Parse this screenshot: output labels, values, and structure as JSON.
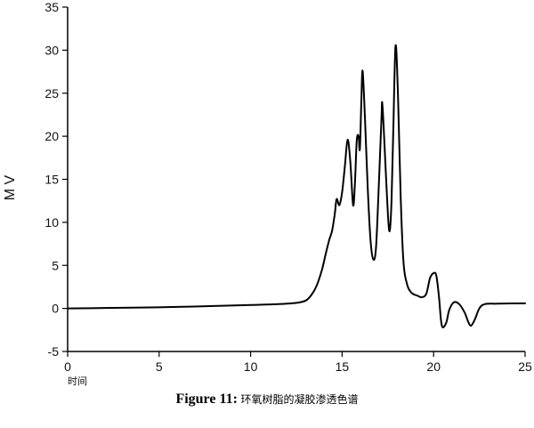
{
  "chart_data": {
    "type": "line",
    "title": "",
    "xlabel": "时间",
    "ylabel": "M V",
    "xlim": [
      0,
      25
    ],
    "ylim": [
      -5,
      35
    ],
    "x_ticks": [
      0,
      5,
      10,
      15,
      20,
      25
    ],
    "y_ticks": [
      -5,
      0,
      5,
      10,
      15,
      20,
      25,
      30,
      35
    ],
    "grid": false,
    "legend": "none",
    "series": [
      {
        "color": "#000000",
        "points": [
          [
            0,
            0.0
          ],
          [
            2,
            0.05
          ],
          [
            4,
            0.1
          ],
          [
            6,
            0.18
          ],
          [
            8,
            0.28
          ],
          [
            10,
            0.4
          ],
          [
            11.5,
            0.5
          ],
          [
            12.5,
            0.65
          ],
          [
            13.0,
            0.9
          ],
          [
            13.3,
            1.5
          ],
          [
            13.6,
            2.6
          ],
          [
            13.9,
            4.5
          ],
          [
            14.1,
            6.3
          ],
          [
            14.3,
            8.0
          ],
          [
            14.45,
            9.0
          ],
          [
            14.6,
            11.0
          ],
          [
            14.7,
            12.7
          ],
          [
            14.85,
            12.0
          ],
          [
            15.0,
            13.5
          ],
          [
            15.15,
            16.5
          ],
          [
            15.3,
            19.6
          ],
          [
            15.45,
            17.0
          ],
          [
            15.6,
            12.0
          ],
          [
            15.7,
            14.5
          ],
          [
            15.8,
            19.5
          ],
          [
            15.9,
            20.0
          ],
          [
            15.97,
            18.5
          ],
          [
            16.05,
            24.0
          ],
          [
            16.12,
            27.6
          ],
          [
            16.25,
            22.0
          ],
          [
            16.4,
            14.0
          ],
          [
            16.55,
            8.0
          ],
          [
            16.7,
            5.7
          ],
          [
            16.85,
            7.0
          ],
          [
            17.0,
            14.0
          ],
          [
            17.15,
            22.0
          ],
          [
            17.2,
            23.7
          ],
          [
            17.35,
            17.5
          ],
          [
            17.5,
            11.0
          ],
          [
            17.6,
            9.0
          ],
          [
            17.7,
            12.5
          ],
          [
            17.8,
            21.0
          ],
          [
            17.92,
            30.5
          ],
          [
            18.05,
            25.0
          ],
          [
            18.2,
            13.0
          ],
          [
            18.35,
            5.5
          ],
          [
            18.55,
            2.8
          ],
          [
            18.8,
            1.8
          ],
          [
            19.1,
            1.5
          ],
          [
            19.35,
            1.3
          ],
          [
            19.6,
            1.7
          ],
          [
            19.8,
            3.5
          ],
          [
            20.0,
            4.1
          ],
          [
            20.15,
            3.8
          ],
          [
            20.3,
            1.2
          ],
          [
            20.4,
            -1.3
          ],
          [
            20.5,
            -2.2
          ],
          [
            20.7,
            -1.6
          ],
          [
            20.85,
            -0.2
          ],
          [
            21.1,
            0.7
          ],
          [
            21.4,
            0.5
          ],
          [
            21.7,
            -0.5
          ],
          [
            21.9,
            -1.6
          ],
          [
            22.05,
            -2.0
          ],
          [
            22.25,
            -1.3
          ],
          [
            22.5,
            0.0
          ],
          [
            22.8,
            0.5
          ],
          [
            23.5,
            0.55
          ],
          [
            25,
            0.6
          ]
        ]
      }
    ]
  },
  "caption": {
    "label": "Figure 11:",
    "text": "环氧树脂的凝胶渗透色谱"
  }
}
